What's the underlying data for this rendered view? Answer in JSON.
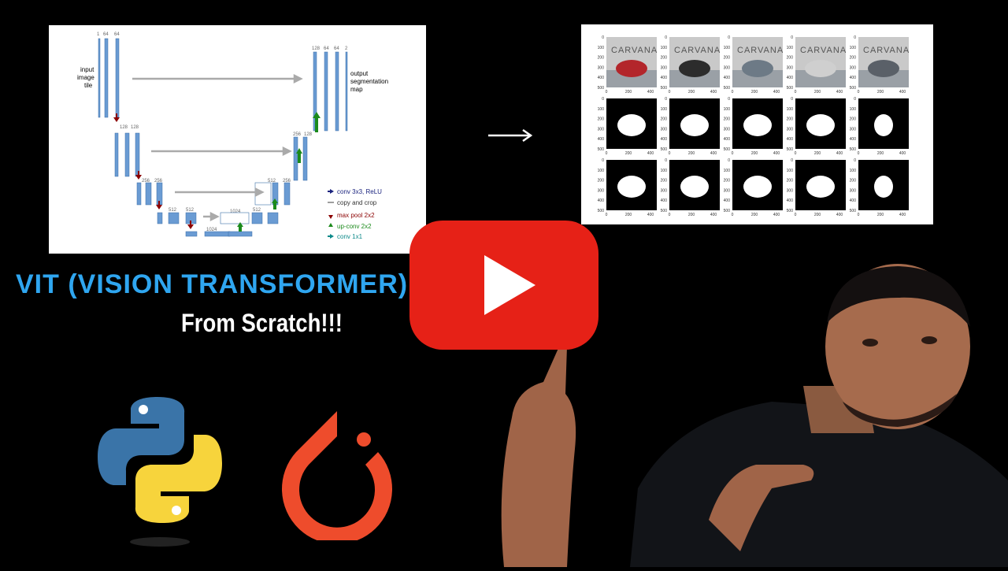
{
  "title": {
    "main": "VIT (VISION TRANSFORMER)",
    "sub": "From Scratch!!!"
  },
  "unet": {
    "labels": {
      "input": [
        "input",
        "image",
        "tile"
      ],
      "output": [
        "output",
        "segmentation",
        "map"
      ]
    },
    "channels": [
      "1",
      "64",
      "64",
      "128",
      "128",
      "256",
      "256",
      "512",
      "512",
      "1024",
      "512",
      "256",
      "128",
      "128",
      "64",
      "64",
      "2",
      "1024",
      "512",
      "256"
    ],
    "dims": [
      "572 x 572",
      "570 x 570",
      "568 x 568",
      "284²",
      "282²",
      "280²",
      "140²",
      "138²",
      "136²",
      "68²",
      "66²",
      "64²",
      "32²",
      "30²",
      "28²",
      "56²",
      "54²",
      "52²",
      "104²",
      "102²",
      "100²",
      "200²",
      "198²",
      "196²",
      "392 x 392",
      "390 x 390",
      "388 x 388",
      "388 x 388"
    ],
    "legend": [
      {
        "text": "conv 3x3, ReLU",
        "color": "#1a237e"
      },
      {
        "text": "copy and crop",
        "color": "#9e9e9e"
      },
      {
        "text": "max pool 2x2",
        "color": "#8b0000"
      },
      {
        "text": "up-conv 2x2",
        "color": "#1b8a1b"
      },
      {
        "text": "conv 1x1",
        "color": "#0d8a8a"
      }
    ]
  },
  "results": {
    "watermark": "CARVANA",
    "yticks": [
      "0",
      "100",
      "200",
      "300",
      "400",
      "500"
    ],
    "xticks": [
      "0",
      "200",
      "400"
    ]
  },
  "colors": {
    "accent": "#2fa6f0",
    "youtube": "#e62117",
    "pytorch": "#ee4c2c",
    "python_blue": "#3a74a8",
    "python_yellow": "#f7d43c"
  },
  "icons": [
    "youtube-play-icon",
    "python-logo-icon",
    "pytorch-logo-icon",
    "arrow-right-icon"
  ]
}
